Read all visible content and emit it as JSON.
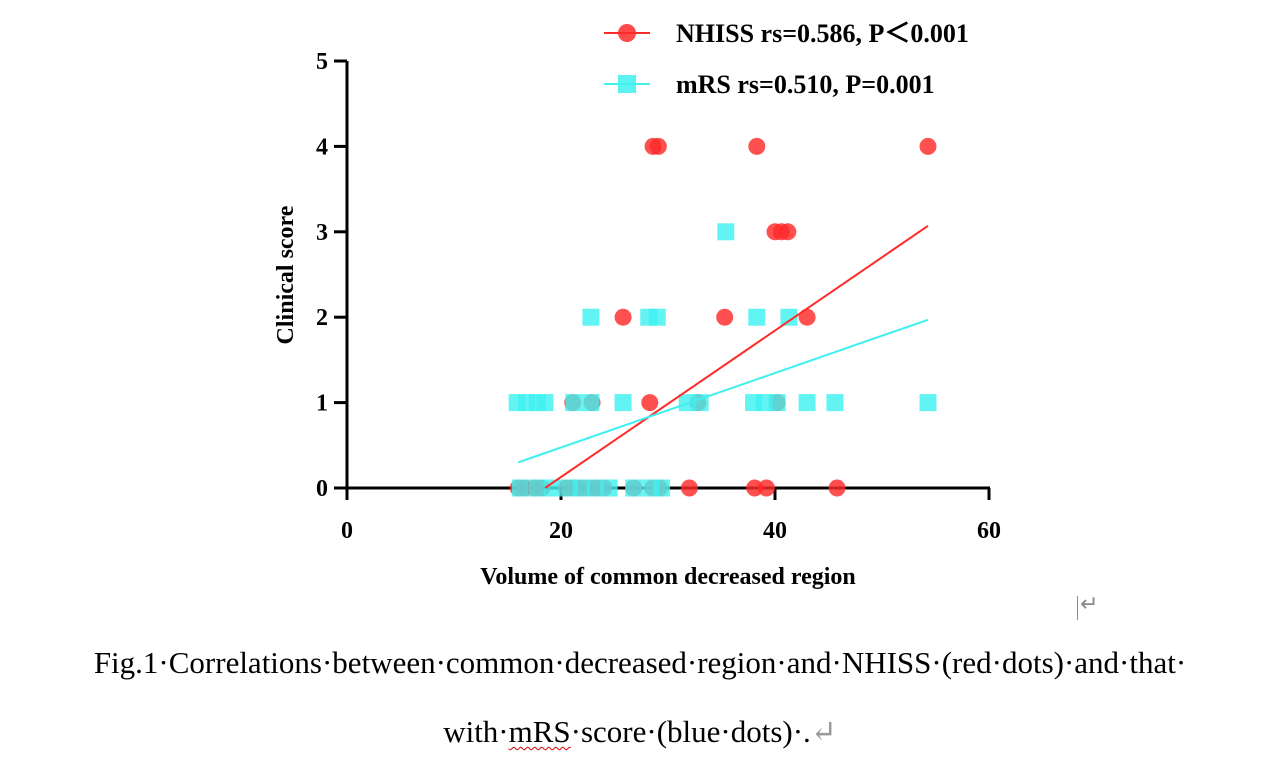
{
  "chart_data": {
    "type": "scatter",
    "ylabel": "Clinical score",
    "xlabel": "Volume of common decreased region",
    "xlim": [
      0,
      60
    ],
    "ylim": [
      0,
      5
    ],
    "xticks": [
      "0",
      "20",
      "40",
      "60"
    ],
    "yticks": [
      "0",
      "1",
      "2",
      "3",
      "4",
      "5"
    ],
    "grid": false,
    "legend_position": "top-right",
    "series": [
      {
        "name": "NHISS rs=0.586, P＜0.001",
        "color": "#ff2a2a",
        "marker": "circle",
        "points": [
          [
            16.0,
            0
          ],
          [
            16.6,
            0
          ],
          [
            17.5,
            0
          ],
          [
            18.2,
            0
          ],
          [
            20.5,
            0
          ],
          [
            21.2,
            0
          ],
          [
            21.8,
            0
          ],
          [
            22.6,
            0
          ],
          [
            23.3,
            0
          ],
          [
            24.0,
            0
          ],
          [
            26.8,
            0
          ],
          [
            28.6,
            0
          ],
          [
            29.2,
            0
          ],
          [
            32.0,
            0
          ],
          [
            38.1,
            0
          ],
          [
            39.2,
            0
          ],
          [
            45.8,
            0
          ],
          [
            21.1,
            1
          ],
          [
            22.9,
            1
          ],
          [
            28.3,
            1
          ],
          [
            32.8,
            1
          ],
          [
            40.2,
            1
          ],
          [
            25.8,
            2
          ],
          [
            35.3,
            2
          ],
          [
            43.0,
            2
          ],
          [
            40.0,
            3
          ],
          [
            40.6,
            3
          ],
          [
            41.2,
            3
          ],
          [
            28.6,
            4
          ],
          [
            29.1,
            4
          ],
          [
            38.3,
            4
          ],
          [
            54.3,
            4
          ]
        ],
        "trend": [
          [
            18.5,
            0.0
          ],
          [
            54.3,
            3.07
          ]
        ]
      },
      {
        "name": "mRS rs=0.510, P=0.001",
        "color": "#3ff0f0",
        "marker": "square",
        "points": [
          [
            16.2,
            0
          ],
          [
            17.8,
            0
          ],
          [
            19.2,
            0
          ],
          [
            20.8,
            0
          ],
          [
            21.9,
            0
          ],
          [
            23.2,
            0
          ],
          [
            24.5,
            0
          ],
          [
            26.8,
            0
          ],
          [
            28.4,
            0
          ],
          [
            29.4,
            0
          ],
          [
            15.9,
            1
          ],
          [
            16.8,
            1
          ],
          [
            17.8,
            1
          ],
          [
            18.5,
            1
          ],
          [
            21.2,
            1
          ],
          [
            22.8,
            1
          ],
          [
            25.8,
            1
          ],
          [
            31.8,
            1
          ],
          [
            33.0,
            1
          ],
          [
            38.0,
            1
          ],
          [
            39.0,
            1
          ],
          [
            40.2,
            1
          ],
          [
            43.0,
            1
          ],
          [
            45.6,
            1
          ],
          [
            54.3,
            1
          ],
          [
            22.8,
            2
          ],
          [
            28.2,
            2
          ],
          [
            29.0,
            2
          ],
          [
            38.3,
            2
          ],
          [
            41.3,
            2
          ],
          [
            35.4,
            3
          ]
        ],
        "trend": [
          [
            16.0,
            0.3
          ],
          [
            54.3,
            1.97
          ]
        ]
      }
    ]
  },
  "caption": {
    "line1": "Fig.1·Correlations·between·common·decreased·region·and·NHISS·(red·dots)·and·that·",
    "line2_pre": "with·",
    "line2_word": "mRS",
    "line2_post": "·score·(blue·dots)·."
  }
}
